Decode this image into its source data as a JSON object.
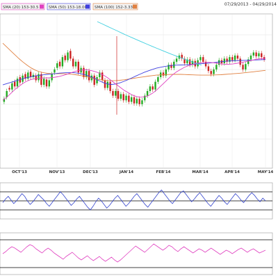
{
  "chart_data": {
    "type": "candlestick",
    "date_range": "07/29/2013 - 04/29/2014",
    "legend": [
      {
        "name": "SMA (20) 153-30.5",
        "color": "#e040c0"
      },
      {
        "name": "SMA (50) 153-18.00",
        "color": "#4040e0"
      },
      {
        "name": "SMA (100) 152-3.33",
        "color": "#e08040"
      }
    ],
    "x_ticks": [
      "OCT'13",
      "NOV'13",
      "DEC'13",
      "JAN'14",
      "FEB'14",
      "MAR'14",
      "APR'14",
      "MAY'14"
    ],
    "candles": [
      {
        "o": 43.0,
        "c": 45.0
      },
      {
        "o": 46.0,
        "c": 50.0
      },
      {
        "o": 52.0,
        "c": 51.0
      },
      {
        "o": 51.0,
        "c": 55.0
      },
      {
        "o": 56.0,
        "c": 53.0
      },
      {
        "o": 53.0,
        "c": 58.0
      },
      {
        "o": 59.0,
        "c": 55.5
      },
      {
        "o": 56.0,
        "c": 60.0
      },
      {
        "o": 61.0,
        "c": 58.0
      },
      {
        "o": 58.0,
        "c": 62.0
      },
      {
        "o": 62.5,
        "c": 59.0
      },
      {
        "o": 59.0,
        "c": 60.5
      },
      {
        "o": 60.0,
        "c": 57.0
      },
      {
        "o": 57.0,
        "c": 61.0
      },
      {
        "o": 61.0,
        "c": 54.0
      },
      {
        "o": 54.0,
        "c": 58.0
      },
      {
        "o": 57.5,
        "c": 53.0
      },
      {
        "o": 53.0,
        "c": 57.0
      },
      {
        "o": 57.0,
        "c": 61.0
      },
      {
        "o": 62.0,
        "c": 64.0
      },
      {
        "o": 65.0,
        "c": 68.0
      },
      {
        "o": 69.0,
        "c": 66.0
      },
      {
        "o": 66.0,
        "c": 72.0
      },
      {
        "o": 73.0,
        "c": 70.0
      },
      {
        "o": 70.0,
        "c": 75.0
      },
      {
        "o": 76.0,
        "c": 71.0
      },
      {
        "o": 71.0,
        "c": 66.0
      },
      {
        "o": 66.0,
        "c": 69.0
      },
      {
        "o": 69.0,
        "c": 62.0
      },
      {
        "o": 62.0,
        "c": 65.0
      },
      {
        "o": 65.0,
        "c": 59.0
      },
      {
        "o": 59.0,
        "c": 63.0
      },
      {
        "o": 63.0,
        "c": 57.0
      },
      {
        "o": 57.0,
        "c": 60.0
      },
      {
        "o": 60.0,
        "c": 54.0
      },
      {
        "o": 55.0,
        "c": 59.0
      },
      {
        "o": 59.0,
        "c": 62.0
      },
      {
        "o": 62.0,
        "c": 57.0
      },
      {
        "o": 57.0,
        "c": 52.0
      },
      {
        "o": 52.0,
        "c": 56.0
      },
      {
        "o": 56.0,
        "c": 50.0
      },
      {
        "o": 50.0,
        "c": 47.0
      },
      {
        "o": 47.0,
        "c": 50.0
      },
      {
        "o": 50.0,
        "c": 45.0
      },
      {
        "o": 45.0,
        "c": 48.0
      },
      {
        "o": 48.0,
        "c": 44.0
      },
      {
        "o": 44.0,
        "c": 47.0
      },
      {
        "o": 47.0,
        "c": 43.0
      },
      {
        "o": 43.0,
        "c": 46.0
      },
      {
        "o": 46.0,
        "c": 42.0
      },
      {
        "o": 42.0,
        "c": 45.0
      },
      {
        "o": 45.0,
        "c": 41.5
      },
      {
        "o": 41.5,
        "c": 44.0
      },
      {
        "o": 44.0,
        "c": 47.0
      },
      {
        "o": 47.0,
        "c": 50.0
      },
      {
        "o": 50.0,
        "c": 53.0
      },
      {
        "o": 53.0,
        "c": 51.0
      },
      {
        "o": 51.0,
        "c": 56.0
      },
      {
        "o": 56.0,
        "c": 59.0
      },
      {
        "o": 59.0,
        "c": 62.0
      },
      {
        "o": 62.0,
        "c": 60.0
      },
      {
        "o": 60.0,
        "c": 64.0
      },
      {
        "o": 64.0,
        "c": 67.0
      },
      {
        "o": 67.0,
        "c": 65.0
      },
      {
        "o": 65.0,
        "c": 69.0
      },
      {
        "o": 69.0,
        "c": 71.0
      },
      {
        "o": 71.0,
        "c": 73.0
      },
      {
        "o": 73.5,
        "c": 71.0
      },
      {
        "o": 71.0,
        "c": 68.0
      },
      {
        "o": 68.0,
        "c": 70.5
      },
      {
        "o": 70.5,
        "c": 67.0
      },
      {
        "o": 67.0,
        "c": 69.5
      },
      {
        "o": 69.5,
        "c": 66.0
      },
      {
        "o": 66.0,
        "c": 70.0
      },
      {
        "o": 70.0,
        "c": 72.0
      },
      {
        "o": 72.0,
        "c": 69.0
      },
      {
        "o": 69.0,
        "c": 66.0
      },
      {
        "o": 66.0,
        "c": 63.0
      },
      {
        "o": 63.0,
        "c": 61.0
      },
      {
        "o": 61.0,
        "c": 64.0
      },
      {
        "o": 64.0,
        "c": 67.0
      },
      {
        "o": 67.0,
        "c": 70.0
      },
      {
        "o": 70.0,
        "c": 68.0
      },
      {
        "o": 68.0,
        "c": 71.0
      },
      {
        "o": 71.0,
        "c": 69.0
      },
      {
        "o": 69.0,
        "c": 72.0
      },
      {
        "o": 72.0,
        "c": 70.0
      },
      {
        "o": 70.0,
        "c": 73.0
      },
      {
        "o": 73.0,
        "c": 71.0
      },
      {
        "o": 71.0,
        "c": 67.0
      },
      {
        "o": 67.0,
        "c": 64.0
      },
      {
        "o": 64.0,
        "c": 67.5
      },
      {
        "o": 67.5,
        "c": 70.5
      },
      {
        "o": 70.5,
        "c": 73.0
      },
      {
        "o": 73.0,
        "c": 75.0
      },
      {
        "o": 75.0,
        "c": 72.5
      },
      {
        "o": 72.5,
        "c": 74.5
      },
      {
        "o": 74.5,
        "c": 72.0
      },
      {
        "o": 72.0,
        "c": 70.5
      }
    ],
    "sma20": [
      44.0,
      46.0,
      48.5,
      51.0,
      53.0,
      55.0,
      56.5,
      57.5,
      58.0,
      58.3,
      58.5,
      58.5,
      58.7,
      59.0,
      59.5,
      60.2,
      61.0,
      62.0,
      62.8,
      63.4,
      63.8,
      63.7,
      63.2,
      62.5,
      61.5,
      60.2,
      58.5,
      56.5,
      54.5,
      52.5,
      50.5,
      49.0,
      47.5,
      46.5,
      46.0,
      46.2,
      47.0,
      48.5,
      50.5,
      53.0,
      55.5,
      58.0,
      60.5,
      62.5,
      64.0,
      65.5,
      66.5,
      67.3,
      68.0,
      68.4,
      68.6,
      68.6,
      68.4,
      68.0,
      67.6,
      67.4,
      67.4,
      67.6,
      68.0,
      68.5,
      69.0,
      69.6,
      70.2,
      70.7,
      71.0,
      71.3
    ],
    "sma50": [
      54.0,
      54.8,
      55.6,
      56.4,
      57.2,
      58.0,
      58.7,
      59.3,
      59.8,
      60.2,
      60.5,
      60.8,
      61.0,
      61.3,
      61.6,
      61.8,
      62.0,
      62.0,
      61.8,
      61.4,
      60.8,
      60.0,
      59.0,
      57.8,
      56.5,
      55.3,
      54.5,
      54.3,
      54.6,
      55.3,
      56.3,
      57.4,
      58.6,
      59.8,
      61.0,
      62.1,
      63.1,
      64.0,
      64.8,
      65.4,
      65.9,
      66.3,
      66.6,
      66.8,
      66.9,
      67.0,
      67.1,
      67.3,
      67.5,
      67.7,
      67.9,
      68.1,
      68.4,
      68.7,
      69.0,
      69.3,
      69.5,
      69.6,
      69.7,
      69.8,
      69.9,
      70.0,
      70.1,
      70.2,
      70.3,
      70.4
    ],
    "sma100": [
      81.0,
      78.5,
      76.0,
      73.5,
      71.0,
      68.8,
      66.8,
      65.0,
      63.6,
      62.6,
      61.9,
      61.5,
      61.3,
      61.2,
      61.2,
      61.2,
      61.1,
      60.9,
      60.6,
      60.2,
      59.7,
      59.1,
      58.5,
      57.9,
      57.4,
      57.0,
      56.8,
      56.7,
      56.8,
      57.0,
      57.3,
      57.7,
      58.1,
      58.5,
      58.9,
      59.3,
      59.7,
      60.0,
      60.3,
      60.5,
      60.6,
      60.7,
      60.8,
      60.8,
      60.8,
      60.7,
      60.6,
      60.5,
      60.4,
      60.3,
      60.3,
      60.3,
      60.4,
      60.5,
      60.6,
      60.8,
      61.0,
      61.2,
      61.4,
      61.6,
      61.9,
      62.2,
      62.5,
      62.8,
      63.1,
      63.4
    ],
    "upper_line": [
      95.0,
      93.5,
      92.0,
      90.5,
      89.0,
      87.5,
      86.0,
      84.6,
      83.2,
      81.8,
      80.4,
      79.0,
      77.7,
      76.4,
      75.1,
      73.8,
      72.6,
      71.4,
      70.2,
      69.0,
      67.8,
      66.8
    ],
    "indicator1": [
      48,
      52,
      55,
      51,
      47,
      50,
      54,
      58,
      55,
      50,
      46,
      49,
      53,
      57,
      54,
      51,
      47,
      44,
      48,
      52,
      56,
      60,
      57,
      53,
      49,
      45,
      48,
      52,
      55,
      51,
      47,
      43,
      40,
      44,
      49,
      53,
      50,
      46,
      42,
      45,
      49,
      53,
      56,
      52,
      48,
      44,
      47,
      51,
      55,
      58,
      54,
      50,
      46,
      43,
      47,
      51,
      55,
      59,
      62,
      58,
      54,
      50,
      47,
      51,
      55,
      59,
      61,
      57,
      53,
      49,
      52,
      56,
      59,
      55,
      51,
      47,
      44,
      48,
      52,
      56,
      53,
      49,
      46,
      50,
      54,
      58,
      55,
      51,
      48,
      52,
      56,
      59,
      56,
      52,
      49,
      53,
      50
    ],
    "indicator2": [
      50,
      53,
      57,
      60,
      58,
      55,
      52,
      56,
      60,
      63,
      61,
      57,
      54,
      51,
      55,
      58,
      55,
      51,
      48,
      45,
      42,
      46,
      49,
      52,
      48,
      44,
      41,
      44,
      47,
      43,
      40,
      43,
      46,
      42,
      39,
      42,
      45,
      41,
      38,
      41,
      45,
      49,
      53,
      57,
      61,
      58,
      55,
      52,
      56,
      60,
      64,
      61,
      58,
      55,
      58,
      62,
      60,
      56,
      53,
      57,
      60,
      57,
      54,
      51,
      54,
      57,
      55,
      52,
      55,
      58,
      55,
      52,
      49,
      52,
      55,
      53,
      50,
      53,
      56,
      58,
      55,
      52,
      55,
      57,
      54,
      51,
      53,
      55
    ],
    "ind2_lines": [
      70,
      30
    ]
  }
}
